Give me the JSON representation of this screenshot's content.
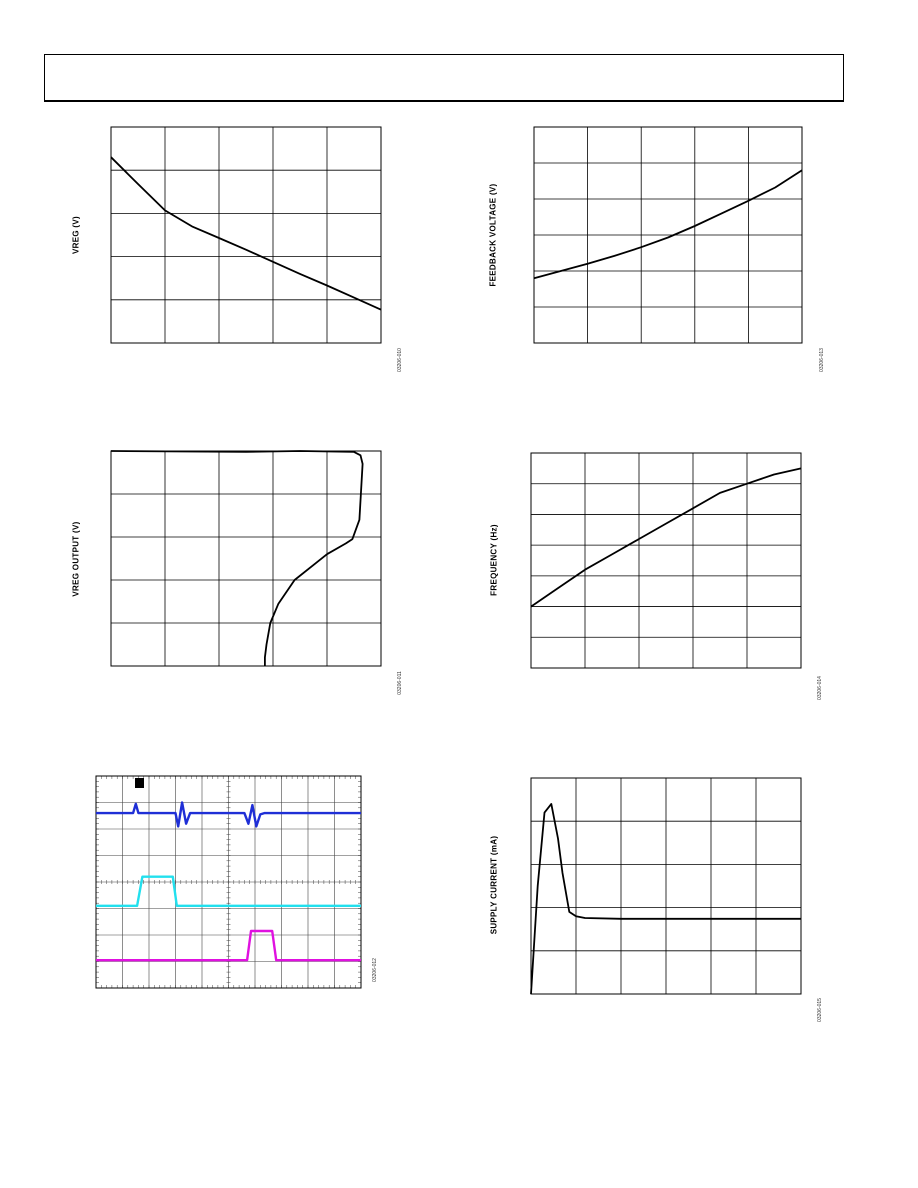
{
  "page": {
    "header": ""
  },
  "charts": {
    "vreg": {
      "ylabel": "VREG (V)",
      "figure_id": "03206-010"
    },
    "feedback": {
      "ylabel": "FEEDBACK VOLTAGE (V)",
      "figure_id": "03206-013"
    },
    "vreg_output": {
      "ylabel": "VREG OUTPUT (V)",
      "figure_id": "03206-011"
    },
    "frequency": {
      "ylabel": "FREQUENCY (Hz)",
      "figure_id": "03206-014"
    },
    "scope": {
      "figure_id": "03206-012"
    },
    "supply": {
      "ylabel": "SUPPLY CURRENT (mA)",
      "figure_id": "03206-015"
    }
  },
  "chart_data": [
    {
      "id": "vreg",
      "type": "line",
      "title": "",
      "xlabel": "",
      "ylabel": "VREG (V)",
      "xlim": [
        0,
        5
      ],
      "ylim": [
        0,
        5
      ],
      "grid": true,
      "series": [
        {
          "color": "#000000",
          "x": [
            0,
            0.5,
            1,
            1.5,
            2,
            2.5,
            3,
            3.5,
            4,
            4.5,
            5
          ],
          "y": [
            4.3,
            3.68,
            3.07,
            2.7,
            2.43,
            2.16,
            1.88,
            1.6,
            1.33,
            1.05,
            0.77
          ]
        }
      ]
    },
    {
      "id": "feedback",
      "type": "line",
      "title": "",
      "xlabel": "",
      "ylabel": "FEEDBACK VOLTAGE (V)",
      "xlim": [
        0,
        5
      ],
      "ylim": [
        0,
        6
      ],
      "grid": true,
      "series": [
        {
          "color": "#000000",
          "x": [
            0,
            0.5,
            1,
            1.5,
            2,
            2.5,
            3,
            3.5,
            4,
            4.5,
            5
          ],
          "y": [
            1.8,
            2.0,
            2.2,
            2.42,
            2.66,
            2.93,
            3.25,
            3.6,
            3.95,
            4.32,
            4.8
          ]
        }
      ]
    },
    {
      "id": "vreg_output",
      "type": "line",
      "title": "",
      "xlabel": "",
      "ylabel": "VREG OUTPUT (V)",
      "xlim": [
        0,
        5
      ],
      "ylim": [
        0,
        5
      ],
      "grid": true,
      "series": [
        {
          "color": "#000000",
          "x": [
            0,
            2.5,
            3.5,
            4.5,
            4.62,
            4.66,
            4.6,
            4.47,
            4.35,
            4.0,
            3.8,
            3.4,
            3.1,
            2.95,
            2.88,
            2.85,
            2.85
          ],
          "y": [
            5.0,
            4.98,
            5.0,
            4.98,
            4.9,
            4.7,
            3.4,
            2.95,
            2.85,
            2.6,
            2.4,
            2.0,
            1.45,
            1.0,
            0.5,
            0.2,
            0
          ]
        }
      ]
    },
    {
      "id": "frequency",
      "type": "line",
      "title": "",
      "xlabel": "",
      "ylabel": "FREQUENCY (Hz)",
      "xlim": [
        0,
        5
      ],
      "ylim": [
        0,
        7
      ],
      "grid": true,
      "series": [
        {
          "color": "#000000",
          "x": [
            0,
            0.5,
            1,
            1.5,
            2,
            2.5,
            3,
            3.5,
            4,
            4.5,
            5
          ],
          "y": [
            2.0,
            2.6,
            3.2,
            3.7,
            4.2,
            4.7,
            5.2,
            5.7,
            6.0,
            6.3,
            6.5
          ]
        }
      ]
    },
    {
      "id": "scope",
      "type": "line",
      "title": "",
      "xlabel": "",
      "ylabel": "",
      "xlim": [
        0,
        10
      ],
      "ylim": [
        0,
        8
      ],
      "grid": true,
      "series": [
        {
          "color": "#1f2fd6",
          "x": [
            0,
            1.4,
            1.5,
            1.6,
            1.7,
            3.0,
            3.1,
            3.25,
            3.4,
            3.55,
            3.7,
            5.6,
            5.75,
            5.9,
            6.05,
            6.2,
            6.35,
            7.5,
            10
          ],
          "y": [
            6.6,
            6.6,
            6.95,
            6.6,
            6.6,
            6.6,
            6.1,
            7.0,
            6.2,
            6.6,
            6.6,
            6.6,
            6.2,
            6.9,
            6.1,
            6.55,
            6.6,
            6.6,
            6.6
          ]
        },
        {
          "color": "#22e0ee",
          "x": [
            0,
            1.55,
            1.75,
            2.9,
            3.05,
            10
          ],
          "y": [
            3.1,
            3.1,
            4.2,
            4.2,
            3.1,
            3.1
          ]
        },
        {
          "color": "#e011e0",
          "x": [
            0,
            5.7,
            5.85,
            6.65,
            6.8,
            10
          ],
          "y": [
            1.05,
            1.05,
            2.15,
            2.15,
            1.05,
            1.05
          ]
        }
      ]
    },
    {
      "id": "supply",
      "type": "line",
      "title": "",
      "xlabel": "",
      "ylabel": "SUPPLY CURRENT (mA)",
      "xlim": [
        0,
        6
      ],
      "ylim": [
        0,
        5
      ],
      "grid": true,
      "series": [
        {
          "color": "#000000",
          "x": [
            0,
            0.15,
            0.3,
            0.45,
            0.6,
            0.7,
            0.85,
            1.0,
            1.2,
            2.0,
            3.0,
            4.0,
            5.0,
            6.0
          ],
          "y": [
            0,
            2.5,
            4.2,
            4.4,
            3.6,
            2.8,
            1.9,
            1.8,
            1.76,
            1.74,
            1.74,
            1.74,
            1.74,
            1.74
          ]
        }
      ]
    }
  ]
}
